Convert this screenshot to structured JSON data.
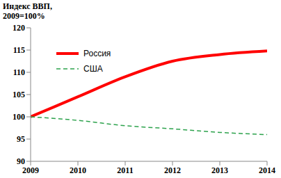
{
  "chart_data": {
    "type": "line",
    "title": "Индекс ВВП, 2009=100%",
    "x": [
      2009,
      2010,
      2011,
      2012,
      2013,
      2014
    ],
    "series": [
      {
        "name": "Россия",
        "color": "#ff0000",
        "line_style": "solid",
        "values": [
          100,
          104.5,
          109,
          112.5,
          114,
          114.8
        ]
      },
      {
        "name": "США",
        "color": "#2ca24c",
        "line_style": "dashed",
        "values": [
          100,
          99.2,
          98,
          97.3,
          96.5,
          96
        ]
      }
    ],
    "xlim": [
      2009,
      2014
    ],
    "xticks": [
      2009,
      2010,
      2011,
      2012,
      2013,
      2014
    ],
    "ylim": [
      90,
      120
    ],
    "yticks": [
      90,
      95,
      100,
      105,
      110,
      115,
      120
    ],
    "grid": false,
    "legend": "upper left"
  }
}
